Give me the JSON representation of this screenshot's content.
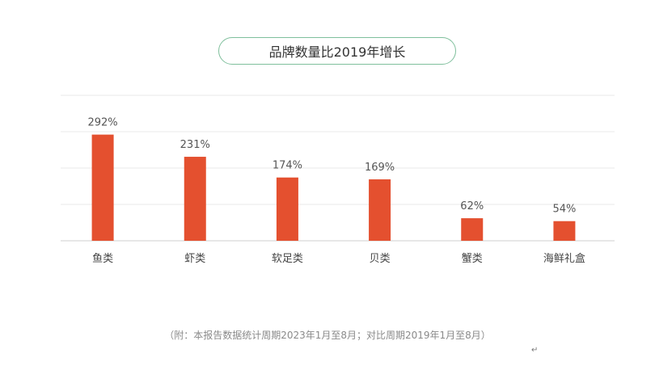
{
  "chart_data": {
    "type": "bar",
    "title": "品牌数量比2019年增长",
    "categories": [
      "鱼类",
      "虾类",
      "软足类",
      "贝类",
      "蟹类",
      "海鲜礼盒"
    ],
    "values": [
      292,
      231,
      174,
      169,
      62,
      54
    ],
    "data_labels": [
      "292%",
      "231%",
      "174%",
      "169%",
      "62%",
      "54%"
    ],
    "ylim": [
      0,
      400
    ],
    "grid": true,
    "bar_color": "#e4502f"
  },
  "note": "（附：本报告数据统计周期2023年1月至8月；对比周期2019年1月至8月）",
  "return_mark": "↵"
}
